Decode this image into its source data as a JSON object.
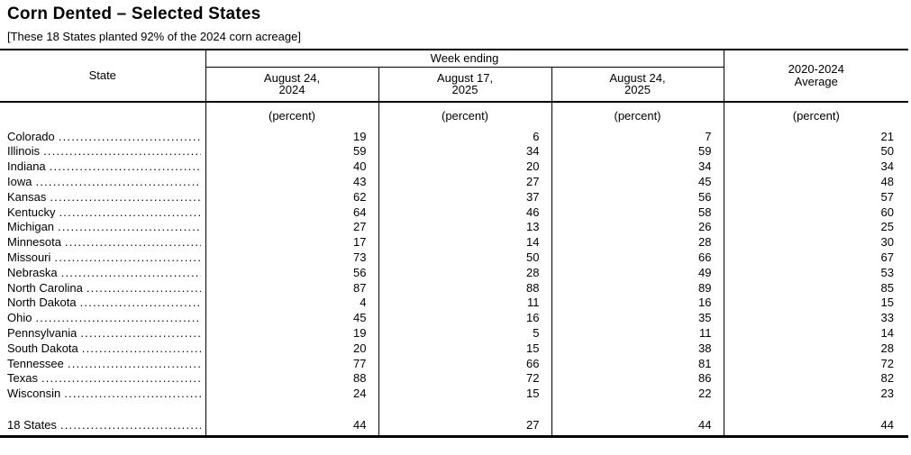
{
  "title": "Corn Dented – Selected States",
  "subtitle": "[These 18 States planted 92% of the 2024 corn acreage]",
  "table": {
    "state_header": "State",
    "week_ending_header": "Week ending",
    "avg_header": {
      "line1": "2020-2024",
      "line2": "Average"
    },
    "date_columns": [
      {
        "line1": "August 24,",
        "line2": "2024"
      },
      {
        "line1": "August 17,",
        "line2": "2025"
      },
      {
        "line1": "August 24,",
        "line2": "2025"
      }
    ],
    "unit_label": "(percent)",
    "rows": [
      {
        "state": "Colorado",
        "values": [
          19,
          6,
          7,
          21
        ]
      },
      {
        "state": "Illinois",
        "values": [
          59,
          34,
          59,
          50
        ]
      },
      {
        "state": "Indiana",
        "values": [
          40,
          20,
          34,
          34
        ]
      },
      {
        "state": "Iowa",
        "values": [
          43,
          27,
          45,
          48
        ]
      },
      {
        "state": "Kansas",
        "values": [
          62,
          37,
          56,
          57
        ]
      },
      {
        "state": "Kentucky",
        "values": [
          64,
          46,
          58,
          60
        ]
      },
      {
        "state": "Michigan",
        "values": [
          27,
          13,
          26,
          25
        ]
      },
      {
        "state": "Minnesota",
        "values": [
          17,
          14,
          28,
          30
        ]
      },
      {
        "state": "Missouri",
        "values": [
          73,
          50,
          66,
          67
        ]
      },
      {
        "state": "Nebraska",
        "values": [
          56,
          28,
          49,
          53
        ]
      },
      {
        "state": "North Carolina",
        "values": [
          87,
          88,
          89,
          85
        ]
      },
      {
        "state": "North Dakota",
        "values": [
          4,
          11,
          16,
          15
        ]
      },
      {
        "state": "Ohio",
        "values": [
          45,
          16,
          35,
          33
        ]
      },
      {
        "state": "Pennsylvania",
        "values": [
          19,
          5,
          11,
          14
        ]
      },
      {
        "state": "South Dakota",
        "values": [
          20,
          15,
          38,
          28
        ]
      },
      {
        "state": "Tennessee",
        "values": [
          77,
          66,
          81,
          72
        ]
      },
      {
        "state": "Texas",
        "values": [
          88,
          72,
          86,
          82
        ]
      },
      {
        "state": "Wisconsin",
        "values": [
          24,
          15,
          22,
          23
        ]
      }
    ],
    "total_row": {
      "state": "18 States",
      "values": [
        44,
        27,
        44,
        44
      ]
    }
  }
}
